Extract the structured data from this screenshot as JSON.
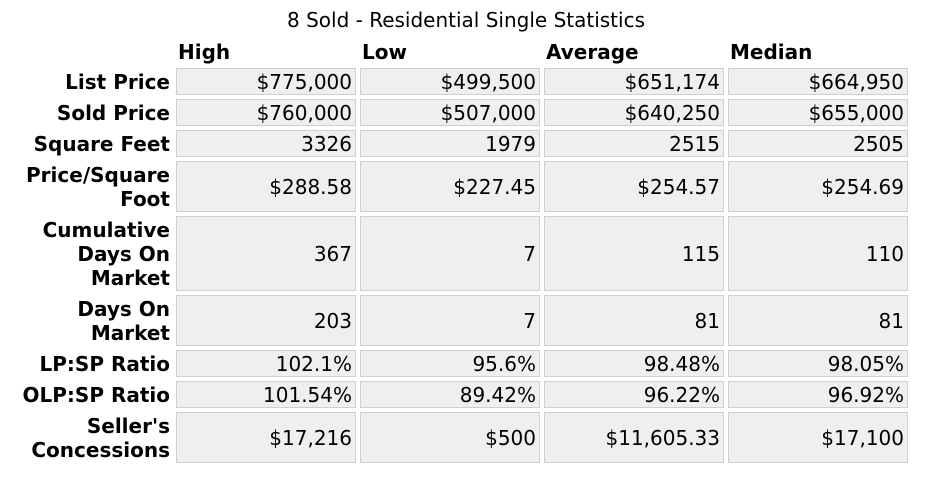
{
  "title": "8 Sold - Residential Single Statistics",
  "columns": [
    "High",
    "Low",
    "Average",
    "Median"
  ],
  "rows": [
    {
      "label": "List Price",
      "values": [
        "$775,000",
        "$499,500",
        "$651,174",
        "$664,950"
      ]
    },
    {
      "label": "Sold Price",
      "values": [
        "$760,000",
        "$507,000",
        "$640,250",
        "$655,000"
      ]
    },
    {
      "label": "Square Feet",
      "values": [
        "3326",
        "1979",
        "2515",
        "2505"
      ]
    },
    {
      "label": "Price/Square Foot",
      "values": [
        "$288.58",
        "$227.45",
        "$254.57",
        "$254.69"
      ]
    },
    {
      "label": "Cumulative Days On Market",
      "values": [
        "367",
        "7",
        "115",
        "110"
      ]
    },
    {
      "label": "Days On Market",
      "values": [
        "203",
        "7",
        "81",
        "81"
      ]
    },
    {
      "label": "LP:SP Ratio",
      "values": [
        "102.1%",
        "95.6%",
        "98.48%",
        "98.05%"
      ]
    },
    {
      "label": "OLP:SP Ratio",
      "values": [
        "101.54%",
        "89.42%",
        "96.22%",
        "96.92%"
      ]
    },
    {
      "label": "Seller's Concessions",
      "values": [
        "$17,216",
        "$500",
        "$11,605.33",
        "$17,100"
      ]
    }
  ]
}
